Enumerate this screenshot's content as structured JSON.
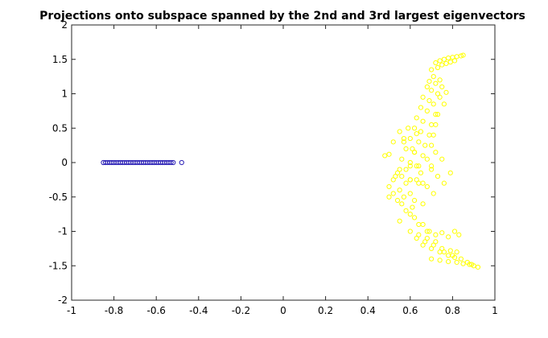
{
  "chart_data": {
    "type": "scatter",
    "title": "Projections onto subspace spanned by the 2nd and 3rd largest eigenvectors",
    "xlabel": "",
    "ylabel": "",
    "xlim": [
      -1,
      1
    ],
    "ylim": [
      -2,
      2
    ],
    "xticks": [
      -1,
      -0.8,
      -0.6,
      -0.4,
      -0.2,
      0,
      0.2,
      0.4,
      0.6,
      0.8,
      1
    ],
    "yticks": [
      -2,
      -1.5,
      -1,
      -0.5,
      0,
      0.5,
      1,
      1.5,
      2
    ],
    "xtick_labels": [
      "-1",
      "-0.8",
      "-0.6",
      "-0.4",
      "-0.2",
      "0",
      "0.2",
      "0.4",
      "0.6",
      "0.8",
      "1"
    ],
    "ytick_labels": [
      "-2",
      "-1.5",
      "-1",
      "-0.5",
      "0",
      "0.5",
      "1",
      "1.5",
      "2"
    ],
    "grid": false,
    "series": [
      {
        "color": "#2a1fb5",
        "marker": "circle-open",
        "x": [
          -0.85,
          -0.84,
          -0.83,
          -0.82,
          -0.81,
          -0.8,
          -0.79,
          -0.78,
          -0.77,
          -0.76,
          -0.75,
          -0.74,
          -0.73,
          -0.72,
          -0.71,
          -0.7,
          -0.69,
          -0.68,
          -0.67,
          -0.66,
          -0.65,
          -0.64,
          -0.63,
          -0.62,
          -0.61,
          -0.6,
          -0.59,
          -0.58,
          -0.57,
          -0.56,
          -0.55,
          -0.54,
          -0.53,
          -0.52,
          -0.48
        ],
        "y": [
          0,
          0,
          0,
          0,
          0,
          0,
          0,
          0,
          0,
          0,
          0,
          0,
          0,
          0,
          0,
          0,
          0,
          0,
          0,
          0,
          0,
          0,
          0,
          0,
          0,
          0,
          0,
          0,
          0,
          0,
          0,
          0,
          0,
          0,
          0
        ]
      },
      {
        "color": "#ffff00",
        "marker": "circle-open",
        "x": [
          0.72,
          0.74,
          0.76,
          0.78,
          0.8,
          0.82,
          0.84,
          0.85,
          0.73,
          0.75,
          0.77,
          0.79,
          0.81,
          0.7,
          0.71,
          0.69,
          0.72,
          0.74,
          0.68,
          0.7,
          0.73,
          0.75,
          0.66,
          0.69,
          0.71,
          0.74,
          0.77,
          0.65,
          0.68,
          0.72,
          0.76,
          0.63,
          0.66,
          0.7,
          0.73,
          0.62,
          0.65,
          0.69,
          0.72,
          0.6,
          0.64,
          0.67,
          0.71,
          0.58,
          0.62,
          0.66,
          0.7,
          0.56,
          0.6,
          0.64,
          0.57,
          0.61,
          0.55,
          0.59,
          0.63,
          0.52,
          0.57,
          0.62,
          0.5,
          0.55,
          0.6,
          0.48,
          0.53,
          0.58,
          0.63,
          0.5,
          0.55,
          0.6,
          0.66,
          0.7,
          0.52,
          0.57,
          0.62,
          0.68,
          0.73,
          0.56,
          0.61,
          0.66,
          0.71,
          0.76,
          0.79,
          0.6,
          0.65,
          0.7,
          0.75,
          0.54,
          0.58,
          0.63,
          0.68,
          0.72,
          0.52,
          0.56,
          0.6,
          0.64,
          0.5,
          0.54,
          0.58,
          0.62,
          0.66,
          0.55,
          0.6,
          0.64,
          0.68,
          0.6,
          0.64,
          0.68,
          0.72,
          0.63,
          0.67,
          0.71,
          0.75,
          0.79,
          0.82,
          0.66,
          0.7,
          0.74,
          0.78,
          0.81,
          0.7,
          0.74,
          0.78,
          0.82,
          0.85,
          0.88,
          0.9,
          0.92,
          0.76,
          0.8,
          0.84,
          0.87,
          0.89,
          0.69,
          0.72,
          0.75,
          0.78,
          0.81,
          0.83
        ],
        "y": [
          1.45,
          1.48,
          1.5,
          1.52,
          1.53,
          1.54,
          1.55,
          1.56,
          1.38,
          1.42,
          1.44,
          1.46,
          1.48,
          1.35,
          1.25,
          1.18,
          1.15,
          1.2,
          1.1,
          1.05,
          1.0,
          1.1,
          0.95,
          0.9,
          0.85,
          0.95,
          1.02,
          0.8,
          0.75,
          0.7,
          0.85,
          0.65,
          0.6,
          0.55,
          0.7,
          0.5,
          0.45,
          0.4,
          0.55,
          0.35,
          0.3,
          0.25,
          0.4,
          0.2,
          0.15,
          0.1,
          0.25,
          0.05,
          0.0,
          -0.05,
          0.3,
          0.2,
          0.45,
          0.5,
          0.42,
          0.3,
          0.35,
          0.15,
          0.12,
          -0.1,
          -0.05,
          0.1,
          -0.2,
          -0.3,
          -0.25,
          -0.35,
          -0.4,
          -0.45,
          -0.3,
          -0.1,
          -0.45,
          -0.5,
          -0.55,
          -0.35,
          -0.2,
          -0.6,
          -0.65,
          -0.6,
          -0.45,
          -0.3,
          -0.15,
          -0.25,
          -0.15,
          -0.05,
          0.05,
          -0.15,
          -0.1,
          -0.05,
          0.05,
          0.15,
          -0.25,
          -0.2,
          -0.25,
          -0.3,
          -0.5,
          -0.55,
          -0.7,
          -0.8,
          -0.9,
          -0.85,
          -0.75,
          -0.9,
          -1.0,
          -1.0,
          -1.05,
          -1.1,
          -1.15,
          -1.1,
          -1.15,
          -1.2,
          -1.25,
          -1.28,
          -1.3,
          -1.2,
          -1.25,
          -1.3,
          -1.35,
          -1.38,
          -1.4,
          -1.42,
          -1.44,
          -1.45,
          -1.47,
          -1.48,
          -1.5,
          -1.52,
          -1.3,
          -1.35,
          -1.4,
          -1.45,
          -1.48,
          -1.0,
          -1.05,
          -1.02,
          -1.08,
          -1.0,
          -1.05
        ]
      }
    ]
  }
}
